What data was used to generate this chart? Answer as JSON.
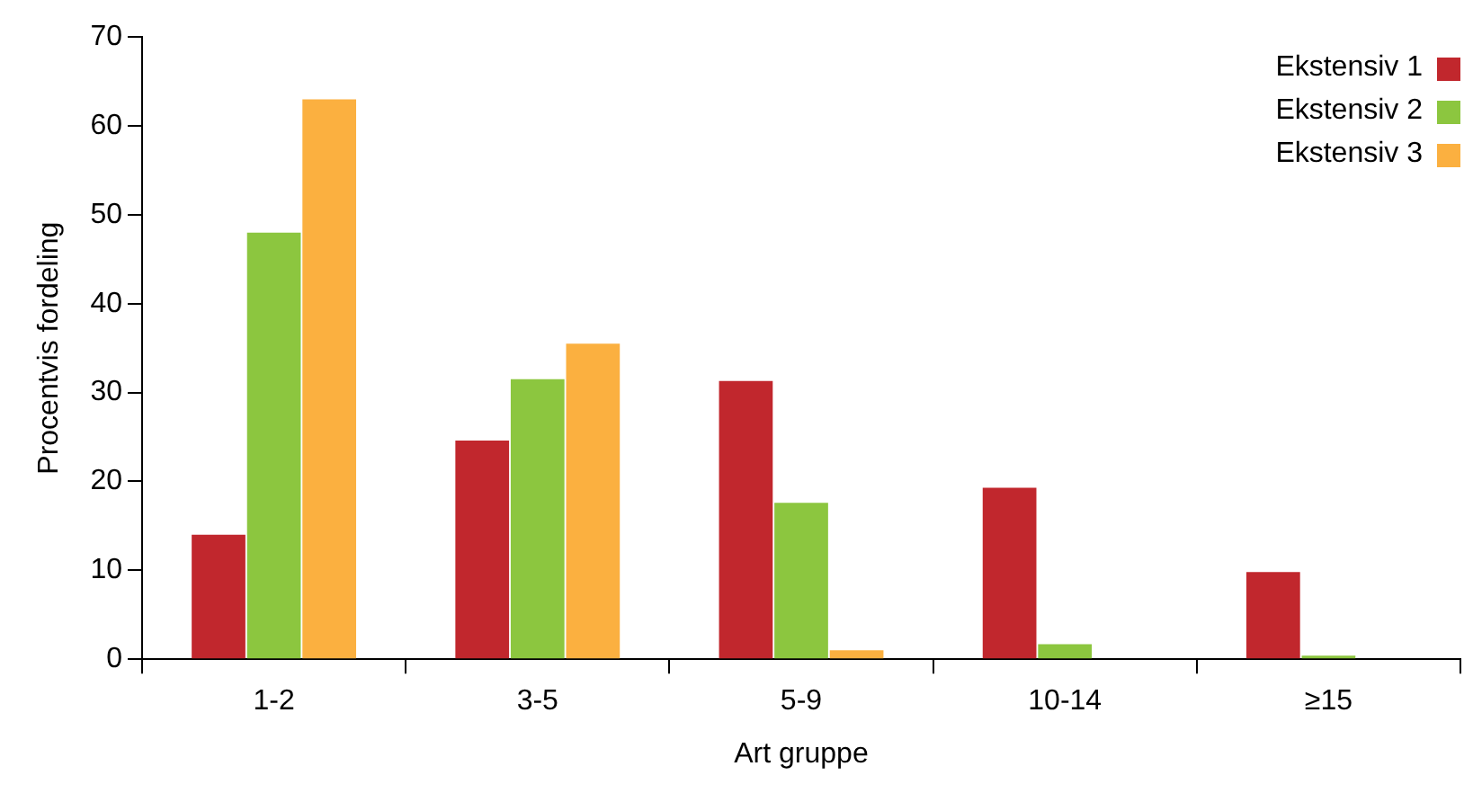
{
  "chart_data": {
    "type": "bar",
    "xlabel": "Art gruppe",
    "ylabel": "Procentvis fordeling",
    "categories": [
      "1-2",
      "3-5",
      "5-9",
      "10-14",
      "≥15"
    ],
    "series": [
      {
        "name": "Ekstensiv 1",
        "color": "#c1272d",
        "values": [
          14,
          24.6,
          31.3,
          19.3,
          9.8
        ]
      },
      {
        "name": "Ekstensiv 2",
        "color": "#8cc63f",
        "values": [
          48,
          31.5,
          17.6,
          1.7,
          0.4
        ]
      },
      {
        "name": "Ekstensiv 3",
        "color": "#fbb040",
        "values": [
          63,
          35.5,
          1,
          0,
          0
        ]
      }
    ],
    "ylim": [
      0,
      70
    ],
    "yticks": [
      0,
      10,
      20,
      30,
      40,
      50,
      60,
      70
    ],
    "grid": false,
    "legend": "top right"
  }
}
